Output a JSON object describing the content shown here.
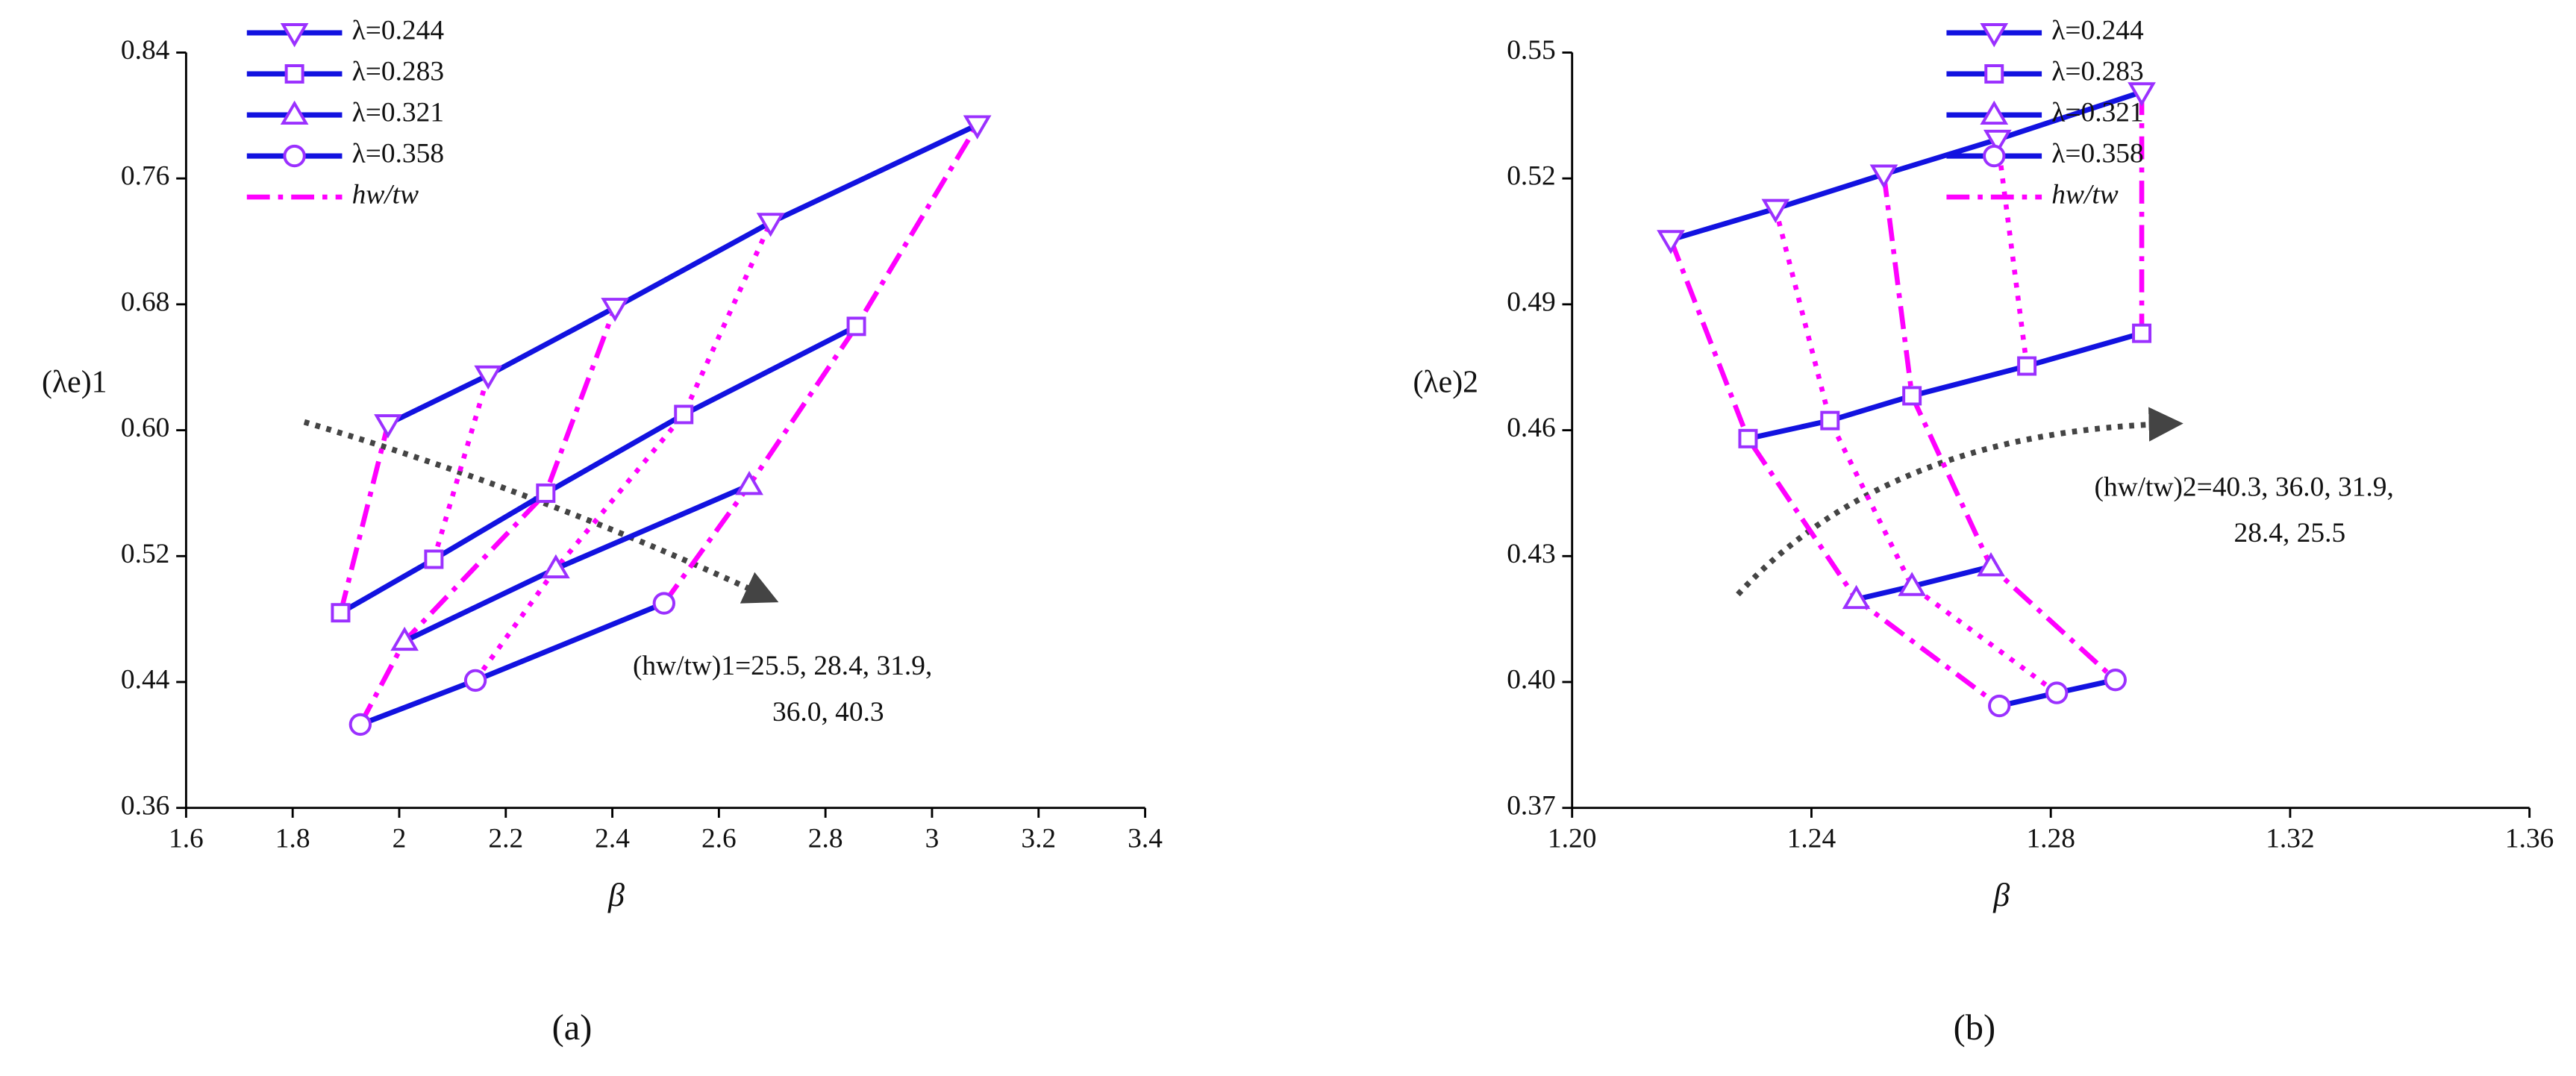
{
  "chart_data": [
    {
      "type": "line",
      "panel_label": "(a)",
      "xlabel": "β",
      "ylabel": "(λe)1",
      "xlim": [
        1.6,
        3.4
      ],
      "xticks": [
        1.6,
        1.8,
        2.0,
        2.2,
        2.4,
        2.6,
        2.8,
        3.0,
        3.2,
        3.4
      ],
      "ylim": [
        0.36,
        0.84
      ],
      "yticks": [
        0.36,
        0.44,
        0.52,
        {
          "value": 0.6,
          "label": "0.60"
        },
        0.68,
        0.76,
        0.84
      ],
      "series": [
        {
          "name": "λ=0.244",
          "color": "#1212e0",
          "marker": "triangle-down",
          "x": [
            1.979,
            2.167,
            2.405,
            2.697,
            3.085
          ],
          "values": [
            0.604,
            0.635,
            0.678,
            0.732,
            0.794
          ]
        },
        {
          "name": "λ=0.283",
          "color": "#1212e0",
          "marker": "square",
          "x": [
            1.89,
            2.065,
            2.275,
            2.534,
            2.858
          ],
          "values": [
            0.484,
            0.518,
            0.56,
            0.61,
            0.666
          ]
        },
        {
          "name": "λ=0.321",
          "color": "#1212e0",
          "marker": "triangle-up",
          "x": [
            2.01,
            2.294,
            2.657
          ],
          "values": [
            0.466,
            0.512,
            0.565
          ]
        },
        {
          "name": "λ=0.358",
          "color": "#1212e0",
          "marker": "circle",
          "x": [
            1.927,
            2.143,
            2.497
          ],
          "values": [
            0.413,
            0.441,
            0.49
          ]
        }
      ],
      "guide_name": "hw/tw",
      "guide_color": "#ff00ff",
      "guides": [
        {
          "x": [
            1.89,
            1.979
          ],
          "values": [
            0.484,
            0.604
          ]
        },
        {
          "x": [
            2.065,
            2.167
          ],
          "values": [
            0.518,
            0.635
          ]
        },
        {
          "x": [
            1.927,
            2.01,
            2.275,
            2.405
          ],
          "values": [
            0.413,
            0.466,
            0.56,
            0.678
          ]
        },
        {
          "x": [
            2.143,
            2.294,
            2.534,
            2.697
          ],
          "values": [
            0.441,
            0.512,
            0.61,
            0.732
          ]
        },
        {
          "x": [
            2.497,
            2.657,
            2.858,
            3.085
          ],
          "values": [
            0.49,
            0.565,
            0.666,
            0.794
          ]
        }
      ],
      "annotation": [
        "(hw/tw)1=25.5, 28.4, 31.9,",
        "36.0, 40.3"
      ]
    },
    {
      "type": "line",
      "panel_label": "(b)",
      "xlabel": "β",
      "ylabel": "(λe)2",
      "xlim": [
        1.2,
        1.36
      ],
      "xticks": [
        {
          "value": 1.2,
          "label": "1.20"
        },
        1.24,
        1.28,
        1.32,
        1.36
      ],
      "ylim": [
        0.37,
        0.55
      ],
      "yticks": [
        0.37,
        {
          "value": 0.4,
          "label": "0.40"
        },
        0.43,
        0.46,
        0.49,
        0.52,
        0.55
      ],
      "series": [
        {
          "name": "λ=0.244",
          "color": "#1212e0",
          "marker": "triangle-down",
          "x": [
            1.2165,
            1.234,
            1.2521,
            1.2711,
            1.2952
          ],
          "values": [
            0.5054,
            0.5128,
            0.521,
            0.5293,
            0.5406
          ]
        },
        {
          "name": "λ=0.283",
          "color": "#1212e0",
          "marker": "square",
          "x": [
            1.2294,
            1.2431,
            1.2568,
            1.276,
            1.2952
          ],
          "values": [
            0.458,
            0.4623,
            0.4682,
            0.4753,
            0.4831
          ]
        },
        {
          "name": "λ=0.321",
          "color": "#1212e0",
          "marker": "triangle-up",
          "x": [
            1.2475,
            1.2568,
            1.27
          ],
          "values": [
            0.4197,
            0.4228,
            0.4275
          ]
        },
        {
          "name": "λ=0.358",
          "color": "#1212e0",
          "marker": "circle",
          "x": [
            1.2714,
            1.281,
            1.2908
          ],
          "values": [
            0.3943,
            0.3974,
            0.4005
          ]
        }
      ],
      "guide_name": "hw/tw",
      "guide_color": "#ff00ff",
      "guides": [
        {
          "x": [
            1.2165,
            1.2294,
            1.2475,
            1.2714
          ],
          "values": [
            0.5054,
            0.458,
            0.4197,
            0.3943
          ]
        },
        {
          "x": [
            1.234,
            1.2431,
            1.2568,
            1.281
          ],
          "values": [
            0.5128,
            0.4623,
            0.4228,
            0.3974
          ]
        },
        {
          "x": [
            1.2521,
            1.2568,
            1.27,
            1.2908
          ],
          "values": [
            0.521,
            0.4682,
            0.4275,
            0.4005
          ]
        },
        {
          "x": [
            1.2711,
            1.276
          ],
          "values": [
            0.5293,
            0.4753
          ]
        },
        {
          "x": [
            1.2952,
            1.2952
          ],
          "values": [
            0.5406,
            0.4831
          ]
        }
      ],
      "annotation": [
        "(hw/tw)2=40.3, 36.0, 31.9,",
        "28.4, 25.5"
      ]
    }
  ]
}
